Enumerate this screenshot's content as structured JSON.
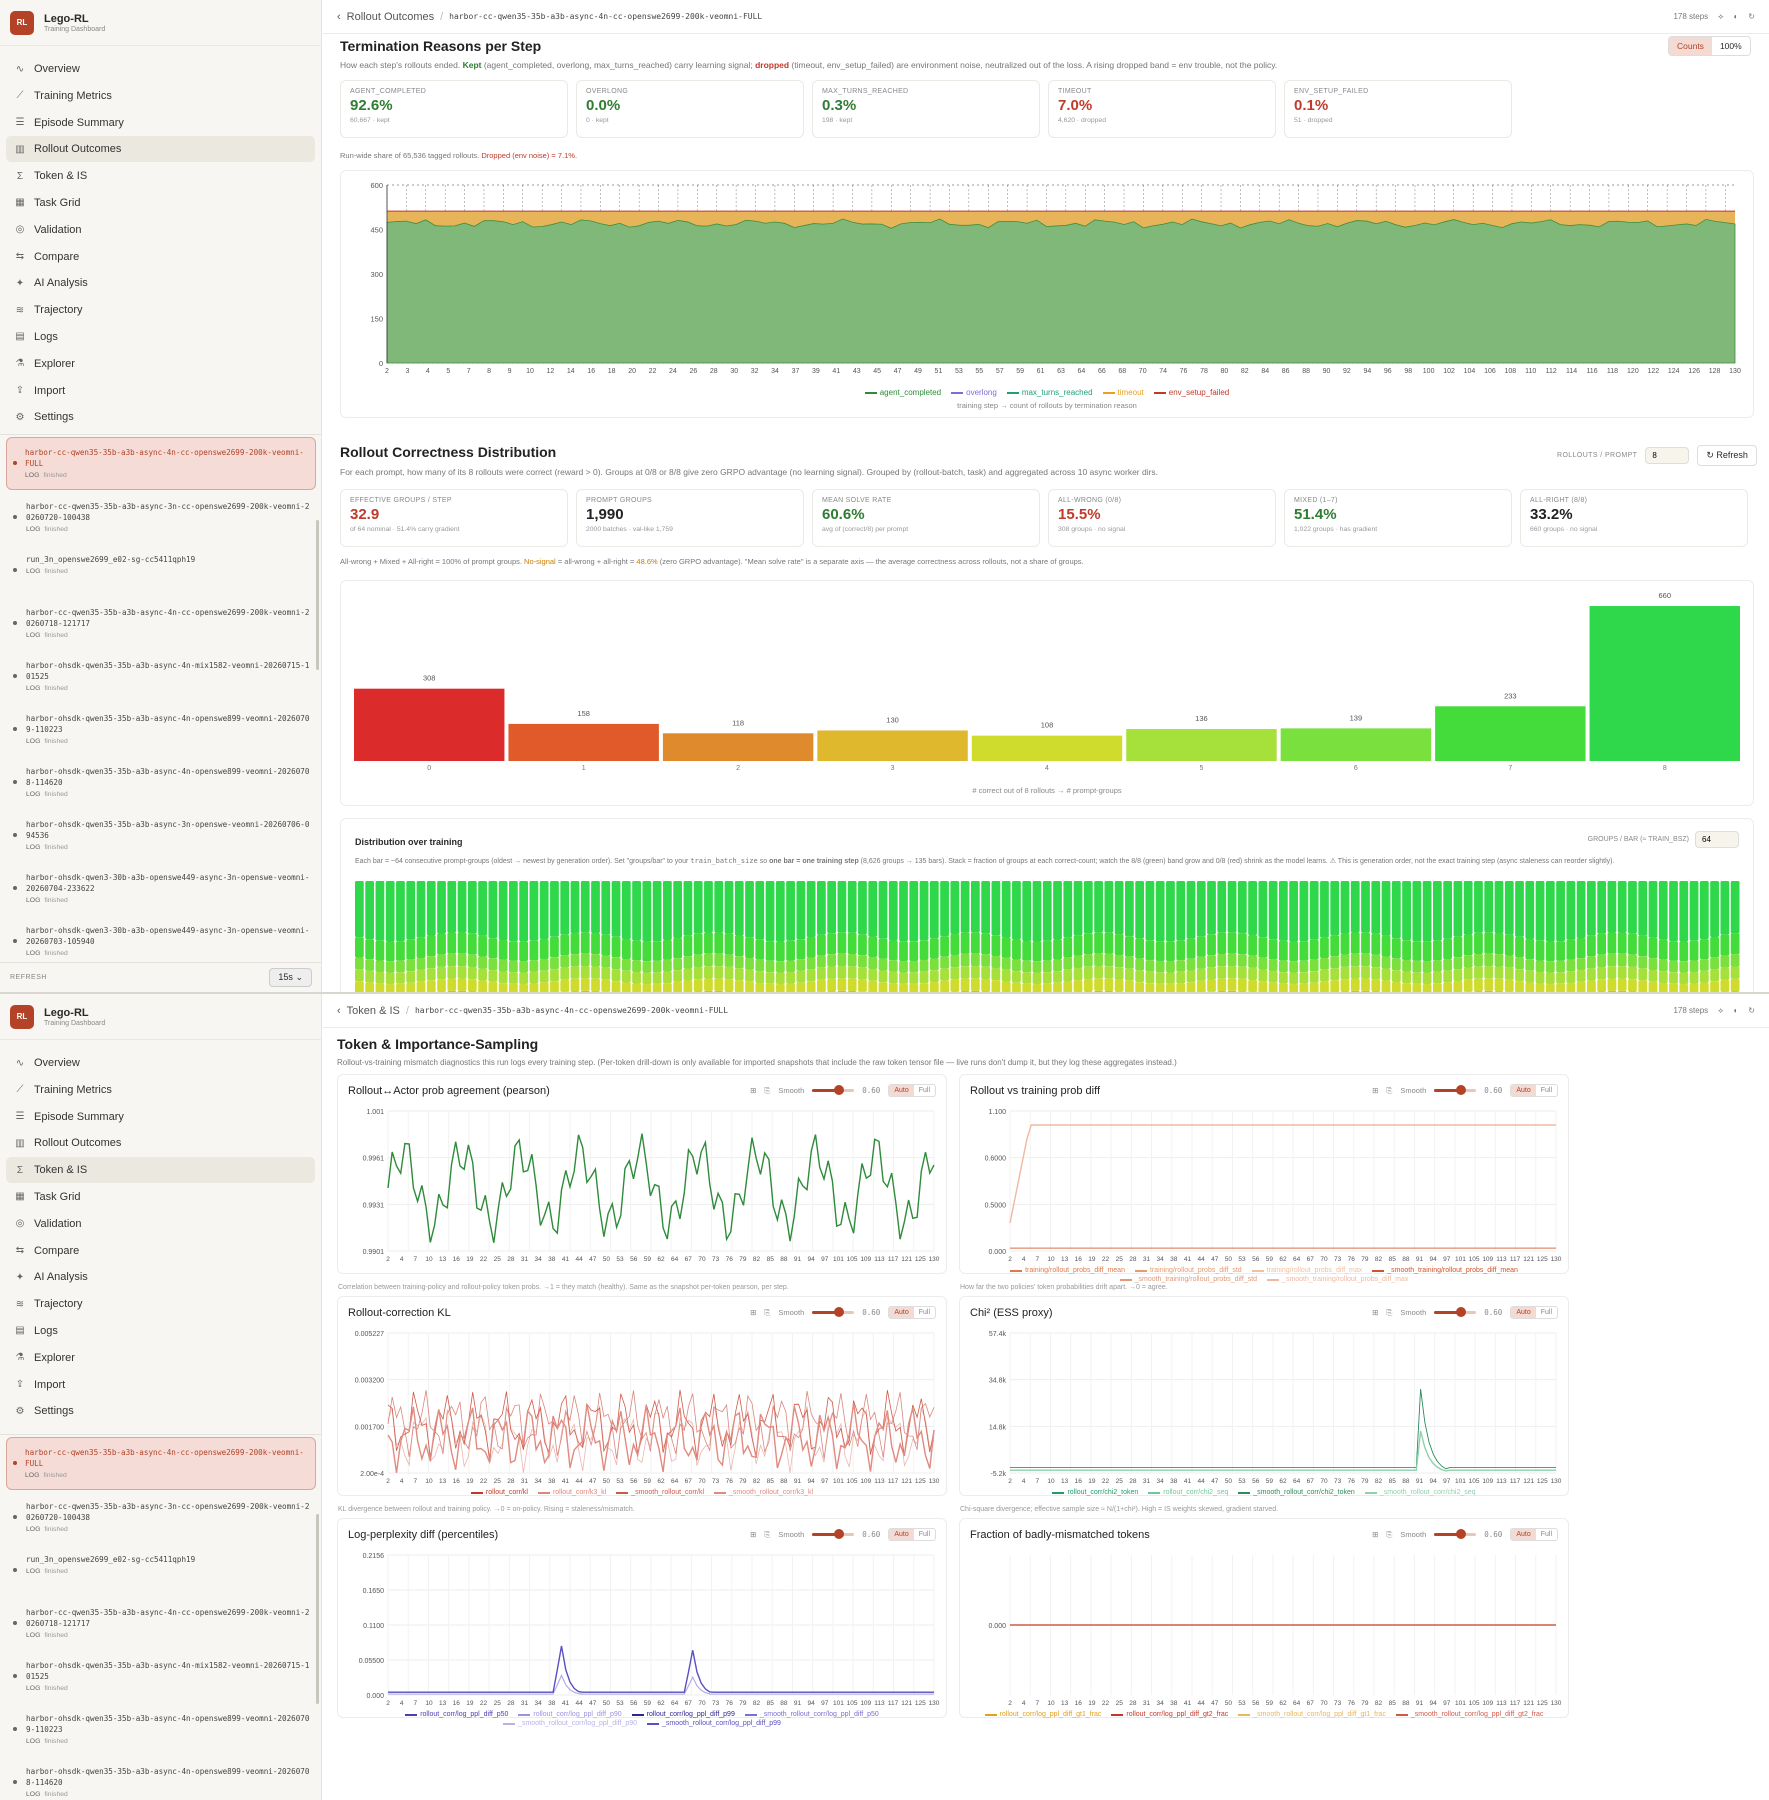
{
  "app": {
    "name": "Lego-RL",
    "subtitle": "Training Dashboard",
    "logo": "RL"
  },
  "nav": [
    {
      "label": "Overview",
      "icon": "overview-icon",
      "glyph": "∿"
    },
    {
      "label": "Training Metrics",
      "icon": "line-chart-icon",
      "glyph": "⟋"
    },
    {
      "label": "Episode Summary",
      "icon": "list-icon",
      "glyph": "☰"
    },
    {
      "label": "Rollout Outcomes",
      "icon": "bar-chart-icon",
      "glyph": "▥"
    },
    {
      "label": "Token & IS",
      "icon": "sigma-icon",
      "glyph": "Σ"
    },
    {
      "label": "Task Grid",
      "icon": "grid-icon",
      "glyph": "▦"
    },
    {
      "label": "Validation",
      "icon": "check-icon",
      "glyph": "◎"
    },
    {
      "label": "Compare",
      "icon": "compare-icon",
      "glyph": "⇆"
    },
    {
      "label": "AI Analysis",
      "icon": "sparkle-icon",
      "glyph": "✦"
    },
    {
      "label": "Trajectory",
      "icon": "trajectory-icon",
      "glyph": "≋"
    },
    {
      "label": "Logs",
      "icon": "logs-icon",
      "glyph": "▤"
    },
    {
      "label": "Explorer",
      "icon": "explorer-icon",
      "glyph": "⚗"
    },
    {
      "label": "Import",
      "icon": "import-icon",
      "glyph": "⇪"
    },
    {
      "label": "Settings",
      "icon": "gear-icon",
      "glyph": "⚙"
    }
  ],
  "runs": [
    {
      "name": "harbor-cc-qwen35-35b-a3b-async-4n-cc-openswe2699-200k-veomni-FULL",
      "tag": "LOG",
      "status": "finished"
    },
    {
      "name": "harbor-cc-qwen35-35b-a3b-async-3n-cc-openswe2699-200k-veomni-20260720-100438",
      "tag": "LOG",
      "status": "finished"
    },
    {
      "name": "run_3n_openswe2699_e02-sg-cc5411qph19",
      "tag": "LOG",
      "status": "finished"
    },
    {
      "name": "harbor-cc-qwen35-35b-a3b-async-4n-cc-openswe2699-200k-veomni-20260718-121717",
      "tag": "LOG",
      "status": "finished"
    },
    {
      "name": "harbor-ohsdk-qwen35-35b-a3b-async-4n-mix1582-veomni-20260715-101525",
      "tag": "LOG",
      "status": "finished"
    },
    {
      "name": "harbor-ohsdk-qwen35-35b-a3b-async-4n-openswe899-veomni-20260709-110223",
      "tag": "LOG",
      "status": "finished"
    },
    {
      "name": "harbor-ohsdk-qwen35-35b-a3b-async-4n-openswe899-veomni-20260708-114620",
      "tag": "LOG",
      "status": "finished"
    },
    {
      "name": "harbor-ohsdk-qwen35-35b-a3b-async-3n-openswe-veomni-20260706-094536",
      "tag": "LOG",
      "status": "finished"
    },
    {
      "name": "harbor-ohsdk-qwen3-30b-a3b-openswe449-async-3n-openswe-veomni-20260704-233622",
      "tag": "LOG",
      "status": "finished"
    },
    {
      "name": "harbor-ohsdk-qwen3-30b-a3b-openswe449-async-3n-openswe-veomni-20260703-105940",
      "tag": "LOG",
      "status": "finished"
    }
  ],
  "refresh": {
    "label": "REFRESH",
    "value": "15s"
  },
  "run_id": "harbor-cc-qwen35-35b-a3b-async-4n-cc-openswe2699-200k-veomni-FULL",
  "steps_label": "178 steps",
  "paneA": {
    "breadcrumb": "Rollout Outcomes",
    "termination": {
      "title": "Termination Reasons per Step",
      "desc_a": "How each step's rollouts ended. ",
      "kept_word": "Kept",
      "desc_b": " (agent_completed, overlong, max_turns_reached) carry learning signal; ",
      "dropped_word": "dropped",
      "desc_c": " (timeout, env_setup_failed) are environment noise, neutralized out of the loss. A rising dropped band = env trouble, not the policy.",
      "toggle": [
        "Counts",
        "100%"
      ],
      "cards": [
        {
          "title": "AGENT_COMPLETED",
          "value": "92.6%",
          "sub": "60,667 · kept",
          "tone": "green"
        },
        {
          "title": "OVERLONG",
          "value": "0.0%",
          "sub": "0 · kept",
          "tone": "green"
        },
        {
          "title": "MAX_TURNS_REACHED",
          "value": "0.3%",
          "sub": "198 · kept",
          "tone": "green"
        },
        {
          "title": "TIMEOUT",
          "value": "7.0%",
          "sub": "4,620 · dropped",
          "tone": "red"
        },
        {
          "title": "ENV_SETUP_FAILED",
          "value": "0.1%",
          "sub": "51 · dropped",
          "tone": "red"
        }
      ],
      "share_a": "Run-wide share of 65,536 tagged rollouts. ",
      "share_b": "Dropped (env noise) = 7.1%.",
      "legend": [
        "agent_completed",
        "overlong",
        "max_turns_reached",
        "timeout",
        "env_setup_failed"
      ],
      "axis_note": "training step → count of rollouts by termination reason"
    },
    "correctness": {
      "title": "Rollout Correctness Distribution",
      "rollouts_label": "ROLLOUTS / PROMPT",
      "rollouts_value": "8",
      "refresh_label": "Refresh",
      "desc": "For each prompt, how many of its 8 rollouts were correct (reward > 0). Groups at 0/8 or 8/8 give zero GRPO advantage (no learning signal). Grouped by (rollout-batch, task) and aggregated across 10 async worker dirs.",
      "cards": [
        {
          "title": "EFFECTIVE GROUPS / STEP",
          "value": "32.9",
          "sub": "of 64 nominal · 51.4% carry gradient",
          "tone": "red"
        },
        {
          "title": "PROMPT GROUPS",
          "value": "1,990",
          "sub": "2000 batches · val-like 1,759",
          "tone": "dark"
        },
        {
          "title": "MEAN SOLVE RATE",
          "value": "60.6%",
          "sub": "avg of (correct/8) per prompt",
          "tone": "green"
        },
        {
          "title": "ALL-WRONG (0/8)",
          "value": "15.5%",
          "sub": "308 groups · no signal",
          "tone": "red"
        },
        {
          "title": "MIXED (1–7)",
          "value": "51.4%",
          "sub": "1,022 groups · has gradient",
          "tone": "green"
        },
        {
          "title": "ALL-RIGHT (8/8)",
          "value": "33.2%",
          "sub": "660 groups · no signal",
          "tone": "dark"
        }
      ],
      "sum_a": "All-wrong + Mixed + All-right = 100% of prompt groups. ",
      "sum_b": "No-signal",
      "sum_c": " = all-wrong + all-right = ",
      "sum_d": "48.6%",
      "sum_e": " (zero GRPO advantage). \"Mean solve rate\" is a separate axis — the average correctness across rollouts, not a share of groups.",
      "axis_note": "# correct out of 8 rollouts → # prompt-groups",
      "dist_title": "Distribution over training",
      "groups_label": "GROUPS / BAR (≈ TRAIN_BSZ)",
      "groups_value": "64",
      "dist_desc_a": "Each bar = ~64 consecutive prompt-groups (oldest → newest by generation order). Set \"groups/bar\" to your ",
      "dist_code": "train_batch_size",
      "dist_desc_b": " so ",
      "dist_bold": "one bar = one training step",
      "dist_desc_c": " (8,626 groups → 135 bars). Stack = fraction of groups at each correct-count; watch the 8/8 (green) band grow and 0/8 (red) shrink as the model learns. ⚠ This is generation order, not the exact training step (async staleness can reorder slightly)."
    }
  },
  "paneB": {
    "breadcrumb": "Token & IS",
    "title": "Token & Importance-Sampling",
    "desc": "Rollout-vs-training mismatch diagnostics this run logs every training step. (Per-token drill-down is only available for imported snapshots that include the raw token tensor file — live runs don't dump it, but they log these aggregates instead.)",
    "smooth_label": "Smooth",
    "smooth_value": "0.60",
    "auto_label": "Auto",
    "full_label": "Full",
    "charts": [
      {
        "title": "Rollout↔Actor prob agreement (pearson)",
        "yticks": [
          "1.001",
          "0.9961",
          "0.9931",
          "0.9901"
        ],
        "legend": [],
        "note": "Correlation between training-policy and rollout-policy token probs. →1 = they match (healthy). Same as the snapshot per-token pearson, per step."
      },
      {
        "title": "Rollout vs training prob diff",
        "yticks": [
          "1.100",
          "0.6000",
          "0.5000",
          "0.000"
        ],
        "legend": [
          "training/rollout_probs_diff_mean",
          "training/rollout_probs_diff_std",
          "training/rollout_probs_diff_max",
          "_smooth_training/rollout_probs_diff_mean",
          "_smooth_training/rollout_probs_diff_std",
          "_smooth_training/rollout_probs_diff_max"
        ],
        "note": "How far the two policies' token probabilities drift apart. →0 = agree."
      },
      {
        "title": "Rollout-correction KL",
        "yticks": [
          "0.005227",
          "0.003200",
          "0.001700",
          "2.00e-4"
        ],
        "legend": [
          "rollout_corr/kl",
          "rollout_corr/k3_kl",
          "_smooth_rollout_corr/kl",
          "_smooth_rollout_corr/k3_kl"
        ],
        "note": "KL divergence between rollout and training policy. →0 = on-policy. Rising = staleness/mismatch."
      },
      {
        "title": "Chi² (ESS proxy)",
        "yticks": [
          "57.4k",
          "34.8k",
          "14.8k",
          "-5.2k"
        ],
        "legend": [
          "rollout_corr/chi2_token",
          "rollout_corr/chi2_seq",
          "_smooth_rollout_corr/chi2_token",
          "_smooth_rollout_corr/chi2_seq"
        ],
        "note": "Chi-square divergence; effective sample size ≈ N/(1+chi²). High = IS weights skewed, gradient starved."
      },
      {
        "title": "Log-perplexity diff (percentiles)",
        "yticks": [
          "0.2156",
          "0.1650",
          "0.1100",
          "0.05500",
          "0.000"
        ],
        "legend": [
          "rollout_corr/log_ppl_diff_p50",
          "rollout_corr/log_ppl_diff_p90",
          "rollout_corr/log_ppl_diff_p99",
          "_smooth_rollout_corr/log_ppl_diff_p50",
          "_smooth_rollout_corr/log_ppl_diff_p90",
          "_smooth_rollout_corr/log_ppl_diff_p99"
        ],
        "note": ""
      },
      {
        "title": "Fraction of badly-mismatched tokens",
        "yticks": [
          "0.000"
        ],
        "legend": [
          "rollout_corr/log_ppl_diff_gt1_frac",
          "rollout_corr/log_ppl_diff_gt2_frac",
          "_smooth_rollout_corr/log_ppl_diff_gt1_frac",
          "_smooth_rollout_corr/log_ppl_diff_gt2_frac"
        ],
        "note": ""
      }
    ]
  },
  "chart_data": [
    {
      "type": "area",
      "title": "Termination Reasons per Step",
      "xlabel": "training step",
      "ylabel": "count of rollouts by termination reason",
      "ylim": [
        0,
        600
      ],
      "yticks": [
        0,
        150,
        300,
        450,
        600
      ],
      "xticks": [
        2,
        3,
        4,
        5,
        7,
        8,
        9,
        10,
        12,
        14,
        16,
        18,
        20,
        22,
        24,
        26,
        28,
        30,
        32,
        34,
        37,
        39,
        41,
        43,
        45,
        47,
        49,
        51,
        53,
        55,
        57,
        59,
        61,
        63,
        64,
        66,
        68,
        70,
        74,
        76,
        78,
        80,
        82,
        84,
        86,
        88,
        90,
        92,
        94,
        96,
        98,
        100,
        102,
        104,
        106,
        108,
        110,
        112,
        114,
        116,
        118,
        120,
        122,
        124,
        126,
        128,
        130
      ],
      "series": [
        {
          "name": "agent_completed",
          "approx_mean": 470
        },
        {
          "name": "overlong",
          "approx_mean": 0
        },
        {
          "name": "max_turns_reached",
          "approx_mean": 1
        },
        {
          "name": "timeout",
          "approx_mean": 36
        },
        {
          "name": "env_setup_failed",
          "approx_mean": 0.4
        }
      ],
      "total_per_step": 512
    },
    {
      "type": "bar",
      "title": "Rollout Correctness Distribution",
      "xlabel": "# correct out of 8 rollouts",
      "ylabel": "# prompt-groups",
      "categories": [
        "0",
        "1",
        "2",
        "3",
        "4",
        "5",
        "6",
        "7",
        "8"
      ],
      "values": [
        308,
        158,
        118,
        130,
        108,
        136,
        139,
        233,
        660
      ],
      "colors": [
        "#dc2b2b",
        "#e05a2a",
        "#e08a2e",
        "#e0b82e",
        "#cfdc2e",
        "#a6e03a",
        "#7ae03d",
        "#44dc3a",
        "#2ed84a"
      ]
    }
  ]
}
